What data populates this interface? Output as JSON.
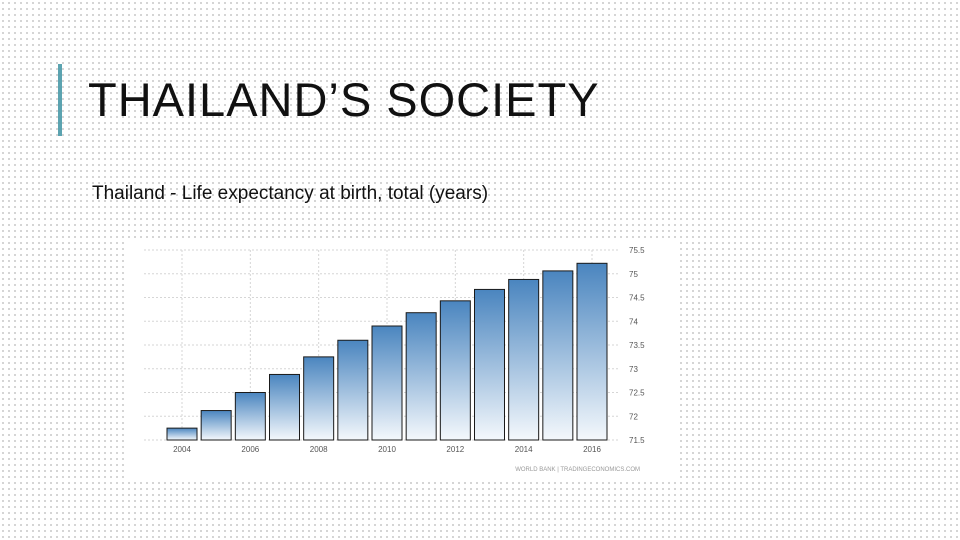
{
  "slide": {
    "title": "THAILAND’S SOCIETY",
    "subtitle": "Thailand - Life expectancy at birth, total (years)",
    "accent_color": "#5ba3b0"
  },
  "chart_data": {
    "type": "bar",
    "categories": [
      "2004",
      "2005",
      "2006",
      "2007",
      "2008",
      "2009",
      "2010",
      "2011",
      "2012",
      "2013",
      "2014",
      "2015",
      "2016"
    ],
    "x_tick_labels": [
      "2004",
      "2006",
      "2008",
      "2010",
      "2012",
      "2014",
      "2016"
    ],
    "values": [
      71.75,
      72.12,
      72.5,
      72.88,
      73.25,
      73.6,
      73.9,
      74.18,
      74.43,
      74.67,
      74.88,
      75.06,
      75.22
    ],
    "ylim": [
      71.5,
      75.5
    ],
    "y_ticks": [
      71.5,
      72,
      72.5,
      73,
      73.5,
      74,
      74.5,
      75,
      75.5
    ],
    "y_tick_labels": [
      "71.5",
      "72",
      "72.5",
      "73",
      "73.5",
      "74",
      "74.5",
      "75",
      "75.5"
    ],
    "y_axis_side": "right",
    "grid": true,
    "bar_color_top": "#4a85bf",
    "bar_color_bottom": "#f4f8fc",
    "source": "WORLD BANK | TRADINGECONOMICS.COM"
  }
}
